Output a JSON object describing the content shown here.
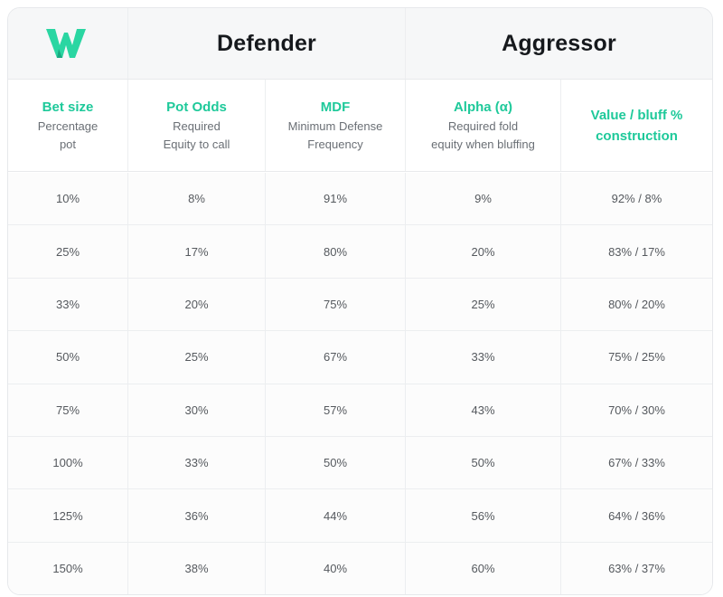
{
  "header": {
    "logo_icon": "wizard-w-logo-icon",
    "defender": "Defender",
    "aggressor": "Aggressor",
    "accent_color": "#1ec99a"
  },
  "columns": [
    {
      "title": "Bet size",
      "subtitle_line1": "Percentage",
      "subtitle_line2": "pot"
    },
    {
      "title": "Pot Odds",
      "subtitle_line1": "Required",
      "subtitle_line2": "Equity to call"
    },
    {
      "title": "MDF",
      "subtitle_line1": "Minimum Defense",
      "subtitle_line2": "Frequency"
    },
    {
      "title": "Alpha (α)",
      "subtitle_line1": "Required fold",
      "subtitle_line2": "equity when bluffing"
    },
    {
      "title": "Value / bluff % construction"
    }
  ],
  "rows": [
    [
      "10%",
      "8%",
      "91%",
      "9%",
      "92% / 8%"
    ],
    [
      "25%",
      "17%",
      "80%",
      "20%",
      "83% / 17%"
    ],
    [
      "33%",
      "20%",
      "75%",
      "25%",
      "80% / 20%"
    ],
    [
      "50%",
      "25%",
      "67%",
      "33%",
      "75% / 25%"
    ],
    [
      "75%",
      "30%",
      "57%",
      "43%",
      "70% / 30%"
    ],
    [
      "100%",
      "33%",
      "50%",
      "50%",
      "67% / 33%"
    ],
    [
      "125%",
      "36%",
      "44%",
      "56%",
      "64% / 36%"
    ],
    [
      "150%",
      "38%",
      "40%",
      "60%",
      "63% / 37%"
    ]
  ]
}
